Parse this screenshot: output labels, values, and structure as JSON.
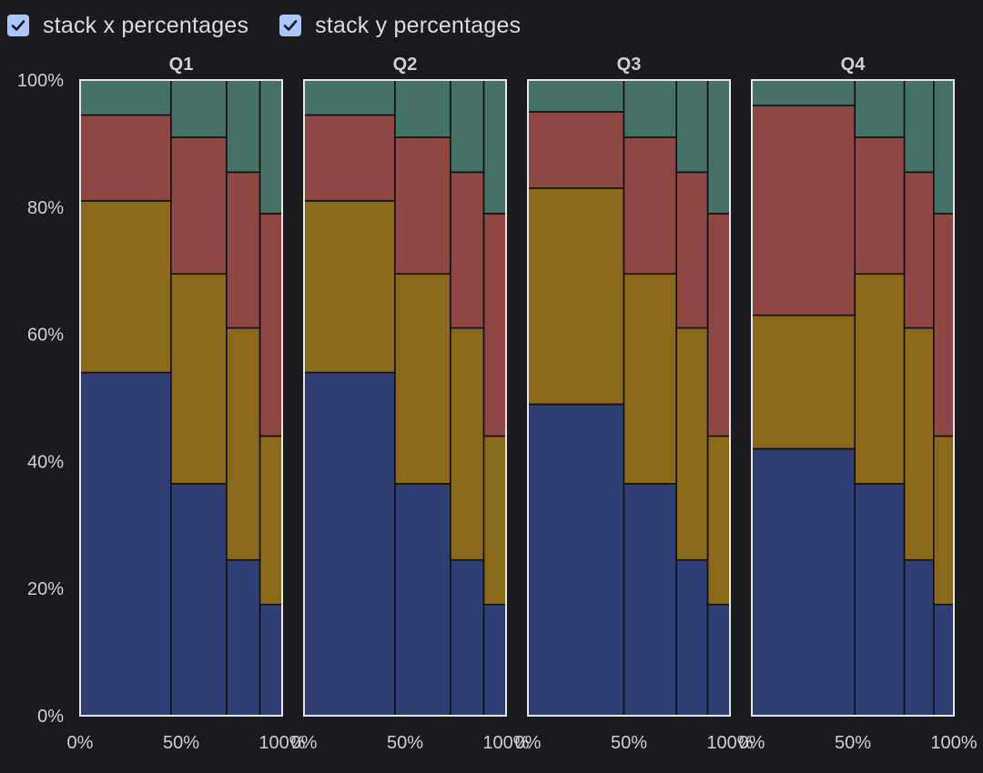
{
  "controls": {
    "stack_x_label": "stack x percentages",
    "stack_x_checked": true,
    "stack_y_label": "stack y percentages",
    "stack_y_checked": true
  },
  "colors": {
    "background": "#1b1b1f",
    "checkbox": "#a8c7fa",
    "segment_border": "#111114",
    "panel_border": "#e6e6e6",
    "text": "#d0d0d0",
    "series": [
      "#2f3f75",
      "#8a681c",
      "#8f4744",
      "#467166"
    ]
  },
  "chart_data": {
    "type": "mosaic",
    "y_ticks": [
      "0%",
      "20%",
      "40%",
      "60%",
      "80%",
      "100%"
    ],
    "x_ticks": [
      "0%",
      "50%",
      "100%"
    ],
    "ylim": [
      0,
      100
    ],
    "xlim": [
      0,
      100
    ],
    "panels": [
      {
        "title": "Q1",
        "columns": [
          {
            "width": 45,
            "values": [
              54,
              27,
              13.5,
              5.5
            ]
          },
          {
            "width": 27.5,
            "values": [
              36.5,
              33,
              21.5,
              9
            ]
          },
          {
            "width": 16.5,
            "values": [
              24.5,
              36.5,
              24.5,
              14.5
            ]
          },
          {
            "width": 11,
            "values": [
              17.5,
              26.5,
              35,
              21
            ]
          }
        ]
      },
      {
        "title": "Q2",
        "columns": [
          {
            "width": 45,
            "values": [
              54,
              27,
              13.5,
              5.5
            ]
          },
          {
            "width": 27.5,
            "values": [
              36.5,
              33,
              21.5,
              9
            ]
          },
          {
            "width": 16.5,
            "values": [
              24.5,
              36.5,
              24.5,
              14.5
            ]
          },
          {
            "width": 11,
            "values": [
              17.5,
              26.5,
              35,
              21
            ]
          }
        ]
      },
      {
        "title": "Q3",
        "columns": [
          {
            "width": 47.5,
            "values": [
              49,
              34,
              12,
              5
            ]
          },
          {
            "width": 26,
            "values": [
              36.5,
              33,
              21.5,
              9
            ]
          },
          {
            "width": 15.5,
            "values": [
              24.5,
              36.5,
              24.5,
              14.5
            ]
          },
          {
            "width": 11,
            "values": [
              17.5,
              26.5,
              35,
              21
            ]
          }
        ]
      },
      {
        "title": "Q4",
        "columns": [
          {
            "width": 51,
            "values": [
              42,
              21,
              33,
              4
            ]
          },
          {
            "width": 24.5,
            "values": [
              36.5,
              33,
              21.5,
              9
            ]
          },
          {
            "width": 14.5,
            "values": [
              24.5,
              36.5,
              24.5,
              14.5
            ]
          },
          {
            "width": 10,
            "values": [
              17.5,
              26.5,
              35,
              21
            ]
          }
        ]
      }
    ]
  }
}
